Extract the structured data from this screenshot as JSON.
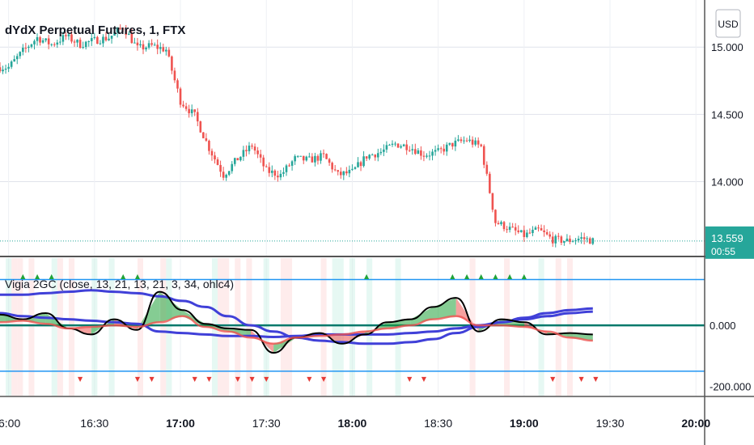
{
  "chart_data": [
    {
      "type": "candlestick",
      "title": "dYdX Perpetual Futures, 1, FTX",
      "currency": "USD",
      "ylim": [
        13.45,
        15.35
      ],
      "y_ticks": [
        "15.000",
        "14.500",
        "14.000"
      ],
      "y_tick_values": [
        15.0,
        14.5,
        14.0
      ],
      "last_price": "13.559",
      "last_price_value": 13.559,
      "countdown": "00:55",
      "grid": true,
      "up_color": "#26a69a",
      "down_color": "#ef5350",
      "close_path": {
        "x": [
          "16:00",
          "16:05",
          "16:10",
          "16:15",
          "16:20",
          "16:25",
          "16:30",
          "16:35",
          "16:40",
          "16:45",
          "16:50",
          "16:55",
          "17:00",
          "17:05",
          "17:10",
          "17:15",
          "17:20",
          "17:25",
          "17:30",
          "17:35",
          "17:40",
          "17:45",
          "17:50",
          "17:55",
          "18:00",
          "18:05",
          "18:10",
          "18:15",
          "18:20",
          "18:25",
          "18:30",
          "18:35",
          "18:40",
          "18:45",
          "18:50",
          "18:55",
          "19:00",
          "19:05",
          "19:10",
          "19:15",
          "19:20",
          "19:24"
        ],
        "close": [
          14.85,
          14.97,
          15.07,
          15.02,
          15.08,
          15.02,
          15.05,
          15.07,
          15.15,
          14.99,
          15.01,
          14.98,
          14.6,
          14.49,
          14.25,
          14.05,
          14.17,
          14.27,
          14.08,
          14.05,
          14.17,
          14.16,
          14.19,
          14.05,
          14.07,
          14.19,
          14.22,
          14.28,
          14.26,
          14.2,
          14.22,
          14.28,
          14.31,
          14.26,
          13.7,
          13.65,
          13.6,
          13.64,
          13.57,
          13.56,
          13.58,
          13.56
        ]
      }
    },
    {
      "type": "line",
      "title": "Vigia 2GC (close, 13, 21, 13, 21, 3, 34, ohlc4)",
      "ylim": [
        -230000,
        220000
      ],
      "y_ticks": [
        "0.000",
        "-200.000"
      ],
      "y_tick_values": [
        0,
        -200000
      ],
      "upper_band": 150000,
      "lower_band": -150000,
      "series": [
        {
          "color": "#4040d8",
          "values": [
            40000,
            30000,
            25000,
            20000,
            15000,
            10000,
            5000,
            -20000,
            -25000,
            -30000,
            -35000,
            -35000,
            -38000,
            -35000,
            -30000,
            -30000,
            -30000,
            -30000,
            -25000,
            -20000,
            -10000,
            0,
            10000,
            20000,
            30000,
            40000,
            45000
          ]
        },
        {
          "color": "#4040d8",
          "values": [
            100000,
            100000,
            105000,
            110000,
            115000,
            110000,
            105000,
            95000,
            80000,
            60000,
            30000,
            0,
            -20000,
            -40000,
            -50000,
            -55000,
            -60000,
            -60000,
            -55000,
            -45000,
            -25000,
            -5000,
            10000,
            25000,
            40000,
            50000,
            55000
          ]
        },
        {
          "color": "#000000",
          "values": [
            35000,
            20000,
            40000,
            -10000,
            -30000,
            20000,
            -15000,
            110000,
            50000,
            5000,
            -10000,
            -15000,
            -90000,
            -40000,
            -25000,
            -60000,
            -30000,
            10000,
            20000,
            60000,
            90000,
            -20000,
            20000,
            10000,
            -30000,
            -25000,
            -30000
          ]
        },
        {
          "color": "#ef5350",
          "values": [
            10000,
            15000,
            5000,
            -10000,
            -5000,
            0,
            -5000,
            10000,
            30000,
            -5000,
            -20000,
            -40000,
            -60000,
            -40000,
            -35000,
            -30000,
            -20000,
            -10000,
            0,
            20000,
            30000,
            0,
            0,
            -5000,
            -20000,
            -40000,
            -50000
          ]
        }
      ],
      "up_markers_time": [
        "16:05",
        "16:10",
        "16:15",
        "16:40",
        "16:45",
        "18:05",
        "18:35",
        "18:40",
        "18:45",
        "18:50",
        "18:55",
        "19:00"
      ],
      "down_markers_time": [
        "16:25",
        "16:45",
        "16:50",
        "17:05",
        "17:10",
        "17:20",
        "17:25",
        "17:30",
        "17:45",
        "17:50",
        "18:20",
        "18:25",
        "19:10",
        "19:20",
        "19:25"
      ],
      "marker_glyphs": {
        "up": "▲",
        "down": "▼"
      }
    }
  ],
  "x_axis": {
    "labels": [
      "6:00",
      "16:30",
      "17:00",
      "17:30",
      "18:00",
      "18:30",
      "19:00",
      "19:30",
      "20:00"
    ],
    "bold_labels": [
      "17:00",
      "18:00",
      "19:00",
      "20:00"
    ]
  },
  "ui": {
    "currency_button": "USD",
    "colors": {
      "ma_fast": "#ef5350",
      "ma_slow": "#4040d8",
      "signal": "#000000",
      "band": "#2196f3",
      "zero": "#00796b",
      "ribbon_green": "#21a33a",
      "ribbon_red": "#ef5350",
      "last_price_bg": "#26a69a"
    }
  }
}
